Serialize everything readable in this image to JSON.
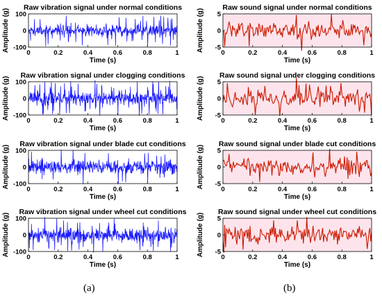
{
  "colors": {
    "vibration_line": "#1a1aff",
    "sound_line": "#cc1a00",
    "sound_bg": "#fde4ec",
    "axis": "#000000"
  },
  "panel_labels": {
    "left": "(a)",
    "right": "(b)"
  },
  "chart_data": [
    {
      "type": "line",
      "column": "a",
      "row": 0,
      "title": "Raw vibration signal under normal conditions",
      "xlabel": "Time (s)",
      "ylabel": "Amplitude (g)",
      "xlim": [
        0,
        1
      ],
      "ylim": [
        -100,
        100
      ],
      "xticks": [
        "0",
        "0.2",
        "0.4",
        "0.6",
        "0.8",
        "1"
      ],
      "xtick_values": [
        0,
        0.2,
        0.4,
        0.6,
        0.8,
        1
      ],
      "yticks": [
        "100",
        "0",
        "-100"
      ],
      "ytick_values": [
        100,
        0,
        -100
      ],
      "signal": {
        "kind": "vibration",
        "amplitude": 35,
        "peak": 95,
        "samples": 500,
        "seed": 11
      }
    },
    {
      "type": "line",
      "column": "a",
      "row": 1,
      "title": "Raw vibration signal under clogging conditions",
      "xlabel": "Time (s)",
      "ylabel": "Amplitude (g)",
      "xlim": [
        0,
        1
      ],
      "ylim": [
        -100,
        100
      ],
      "xticks": [
        "0",
        "0.2",
        "0.4",
        "0.6",
        "0.8",
        "1"
      ],
      "xtick_values": [
        0,
        0.2,
        0.4,
        0.6,
        0.8,
        1
      ],
      "yticks": [
        "100",
        "0",
        "-100"
      ],
      "ytick_values": [
        100,
        0,
        -100
      ],
      "signal": {
        "kind": "vibration",
        "amplitude": 40,
        "peak": 110,
        "samples": 500,
        "seed": 23
      }
    },
    {
      "type": "line",
      "column": "a",
      "row": 2,
      "title": "Raw vibration signal under blade cut conditions",
      "xlabel": "Time (s)",
      "ylabel": "Amplitude (g)",
      "xlim": [
        0,
        1
      ],
      "ylim": [
        -100,
        100
      ],
      "xticks": [
        "0",
        "0.2",
        "0.4",
        "0.6",
        "0.8",
        "1"
      ],
      "xtick_values": [
        0,
        0.2,
        0.4,
        0.6,
        0.8,
        1
      ],
      "yticks": [
        "100",
        "0",
        "-100"
      ],
      "ytick_values": [
        100,
        0,
        -100
      ],
      "signal": {
        "kind": "vibration",
        "amplitude": 38,
        "peak": 105,
        "samples": 500,
        "seed": 37
      }
    },
    {
      "type": "line",
      "column": "a",
      "row": 3,
      "title": "Raw vibration signal under wheel cut conditions",
      "xlabel": "Time (s)",
      "ylabel": "Amplitude (g)",
      "xlim": [
        0,
        1
      ],
      "ylim": [
        -100,
        100
      ],
      "xticks": [
        "0",
        "0.2",
        "0.4",
        "0.6",
        "0.8",
        "1"
      ],
      "xtick_values": [
        0,
        0.2,
        0.4,
        0.6,
        0.8,
        1
      ],
      "yticks": [
        "100",
        "0",
        "-100"
      ],
      "ytick_values": [
        100,
        0,
        -100
      ],
      "signal": {
        "kind": "vibration",
        "amplitude": 40,
        "peak": 110,
        "samples": 500,
        "seed": 53
      }
    },
    {
      "type": "line",
      "column": "b",
      "row": 0,
      "title": "Raw sound signal under normal conditions",
      "xlabel": "Time (s)",
      "ylabel": "Amplitude (g)",
      "xlim": [
        0,
        1
      ],
      "ylim": [
        -5,
        5
      ],
      "xticks": [
        "0",
        "0.2",
        "0.4",
        "0.6",
        "0.8",
        "1"
      ],
      "xtick_values": [
        0,
        0.2,
        0.4,
        0.6,
        0.8,
        1
      ],
      "yticks": [
        "5",
        "0",
        "-5"
      ],
      "ytick_values": [
        5,
        0,
        -5
      ],
      "signal": {
        "kind": "sound",
        "amplitude": 2.2,
        "peak": 5.5,
        "samples": 170,
        "seed": 71
      }
    },
    {
      "type": "line",
      "column": "b",
      "row": 1,
      "title": "Raw sound signal under clogging conditions",
      "xlabel": "Time (s)",
      "ylabel": "Amplitude (g)",
      "xlim": [
        0,
        1
      ],
      "ylim": [
        -5,
        5
      ],
      "xticks": [
        "0",
        "0.2",
        "0.4",
        "0.6",
        "0.8",
        "1"
      ],
      "xtick_values": [
        0,
        0.2,
        0.4,
        0.6,
        0.8,
        1
      ],
      "yticks": [
        "5",
        "0",
        "-5"
      ],
      "ytick_values": [
        5,
        0,
        -5
      ],
      "signal": {
        "kind": "sound",
        "amplitude": 2.4,
        "peak": 5.8,
        "samples": 170,
        "seed": 89
      }
    },
    {
      "type": "line",
      "column": "b",
      "row": 2,
      "title": "Raw sound signal under blade cut conditions",
      "xlabel": "Time (s)",
      "ylabel": "Amplitude (g)",
      "xlim": [
        0,
        1
      ],
      "ylim": [
        -5,
        5
      ],
      "xticks": [
        "0",
        "0.2",
        "0.4",
        "0.6",
        "0.8",
        "1"
      ],
      "xtick_values": [
        0,
        0.2,
        0.4,
        0.6,
        0.8,
        1
      ],
      "yticks": [
        "5",
        "0",
        "-5"
      ],
      "ytick_values": [
        5,
        0,
        -5
      ],
      "signal": {
        "kind": "sound",
        "amplitude": 2.4,
        "peak": 5.8,
        "samples": 170,
        "seed": 97
      }
    },
    {
      "type": "line",
      "column": "b",
      "row": 3,
      "title": "Raw sound signal under wheel cut conditions",
      "xlabel": "Time (s)",
      "ylabel": "Amplitude (g)",
      "xlim": [
        0,
        1
      ],
      "ylim": [
        -5,
        5
      ],
      "xticks": [
        "0",
        "0.2",
        "0.4",
        "0.6",
        "0.8",
        "1"
      ],
      "xtick_values": [
        0,
        0.2,
        0.4,
        0.6,
        0.8,
        1
      ],
      "yticks": [
        "5",
        "0",
        "-5"
      ],
      "ytick_values": [
        5,
        0,
        -5
      ],
      "signal": {
        "kind": "sound",
        "amplitude": 2.4,
        "peak": 5.8,
        "samples": 170,
        "seed": 113
      }
    }
  ]
}
